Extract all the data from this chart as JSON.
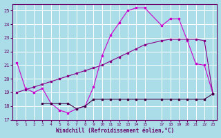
{
  "background_color": "#aadde8",
  "grid_color": "#ffffff",
  "line_color1": "#cc00cc",
  "line_color2": "#880088",
  "line_color3": "#440044",
  "xlabel": "Windchill (Refroidissement éolien,°C)",
  "xlim": [
    -0.5,
    23.5
  ],
  "ylim": [
    17,
    25.5
  ],
  "yticks": [
    17,
    18,
    19,
    20,
    21,
    22,
    23,
    24,
    25
  ],
  "xticks": [
    0,
    1,
    2,
    3,
    4,
    5,
    6,
    7,
    8,
    9,
    10,
    11,
    12,
    13,
    14,
    15,
    17,
    18,
    19,
    20,
    21,
    22,
    23
  ],
  "s1x": [
    0,
    1,
    2,
    3,
    4,
    5,
    6,
    7,
    8,
    9,
    10,
    11,
    12,
    13,
    14,
    15,
    17,
    18,
    19,
    20,
    21,
    22,
    23
  ],
  "s1y": [
    21.2,
    19.3,
    19.0,
    19.3,
    18.2,
    17.7,
    17.5,
    17.8,
    18.0,
    19.4,
    21.7,
    23.2,
    24.1,
    25.0,
    25.2,
    25.2,
    23.9,
    24.4,
    24.4,
    22.8,
    21.1,
    21.0,
    18.9
  ],
  "s2x": [
    0,
    1,
    2,
    3,
    4,
    5,
    6,
    7,
    8,
    9,
    10,
    11,
    12,
    13,
    14,
    15,
    17,
    18,
    19,
    20,
    21,
    22,
    23
  ],
  "s2y": [
    19.0,
    19.2,
    19.4,
    19.6,
    19.8,
    20.0,
    20.2,
    20.4,
    20.6,
    20.8,
    21.0,
    21.3,
    21.6,
    21.9,
    22.2,
    22.5,
    22.8,
    22.9,
    22.9,
    22.9,
    22.9,
    22.8,
    18.9
  ],
  "s3x": [
    3,
    4,
    5,
    6,
    7,
    8,
    9,
    10,
    11,
    12,
    13,
    14,
    15,
    17,
    18,
    19,
    20,
    21,
    22,
    23
  ],
  "s3y": [
    18.2,
    18.2,
    18.2,
    18.2,
    17.8,
    18.0,
    18.5,
    18.5,
    18.5,
    18.5,
    18.5,
    18.5,
    18.5,
    18.5,
    18.5,
    18.5,
    18.5,
    18.5,
    18.5,
    18.9
  ]
}
